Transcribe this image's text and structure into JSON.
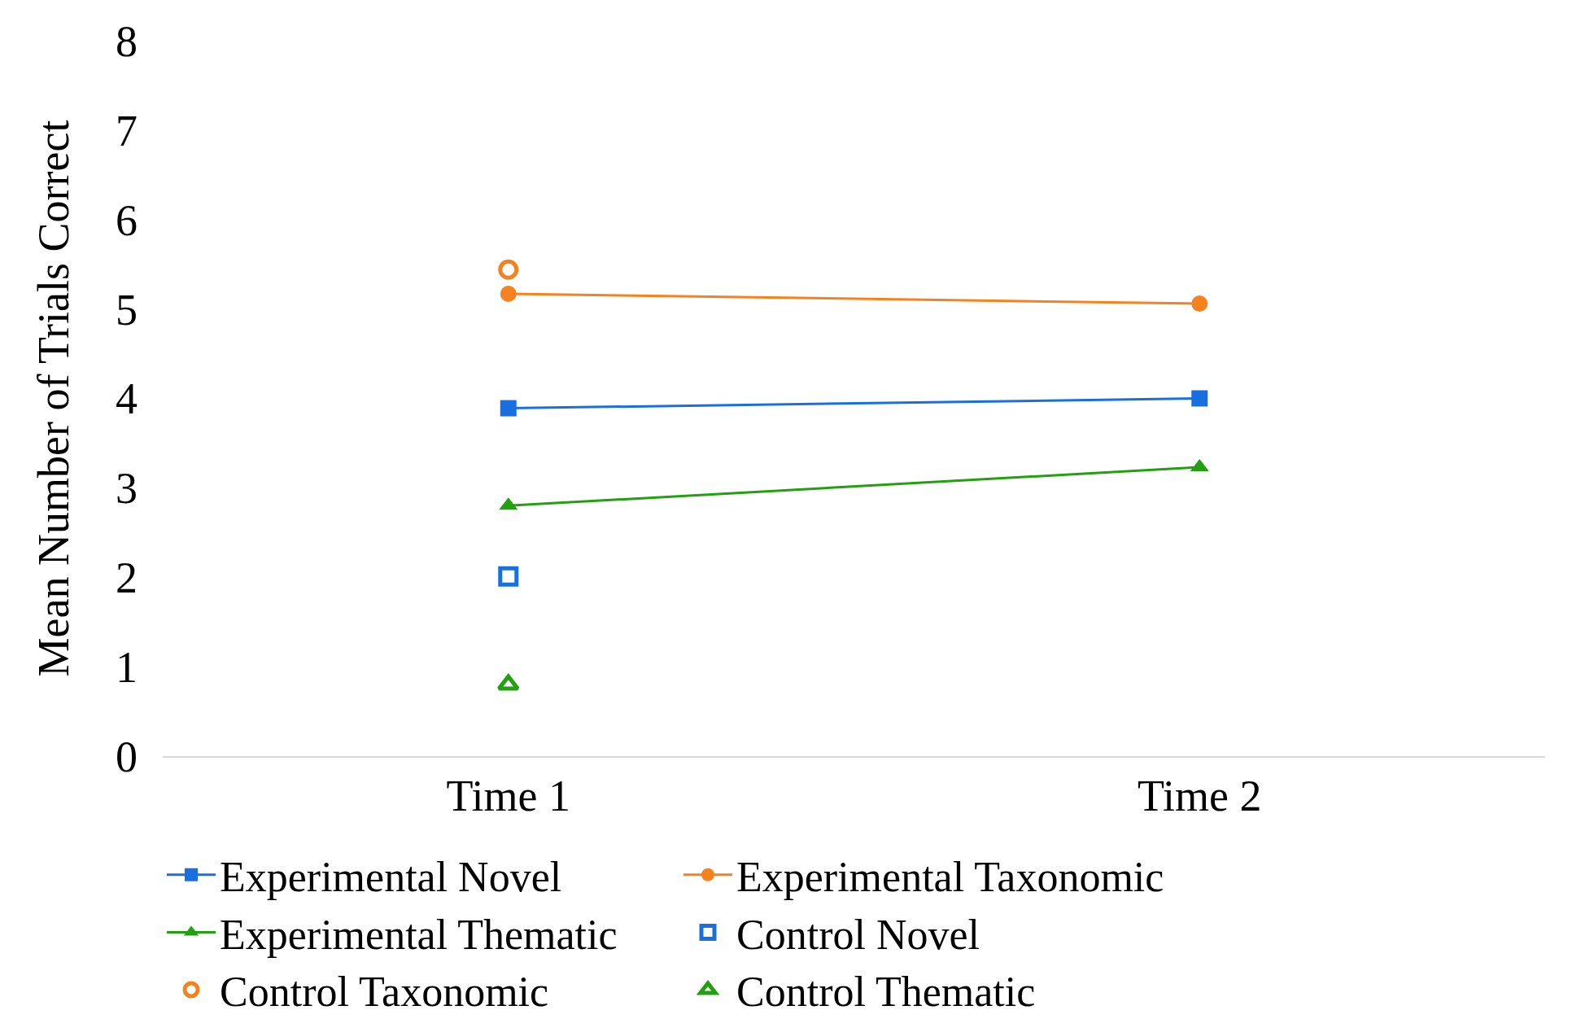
{
  "chart_data": {
    "type": "line",
    "ylabel": "Mean Number of Trials Correct",
    "categories": [
      "Time 1",
      "Time 2"
    ],
    "ylim": [
      0,
      8
    ],
    "yticks": [
      0,
      1,
      2,
      3,
      4,
      5,
      6,
      7,
      8
    ],
    "grid": false,
    "legend": "bottom",
    "series": [
      {
        "name": "Experimental Novel",
        "color": "#1a6fdf",
        "marker": "square",
        "values": [
          3.89,
          4.0
        ]
      },
      {
        "name": "Experimental Taxonomic",
        "color": "#f5821f",
        "marker": "circle",
        "values": [
          5.17,
          5.06
        ]
      },
      {
        "name": "Experimental Thematic",
        "color": "#22a00f",
        "marker": "triangle",
        "values": [
          2.8,
          3.23
        ]
      },
      {
        "name": "Control Novel",
        "type": "scatter",
        "color": "#1a6fdf",
        "marker": "square",
        "values": [
          2.01,
          null
        ]
      },
      {
        "name": "Control Taxonomic",
        "type": "scatter",
        "color": "#f5821f",
        "marker": "circle",
        "values": [
          5.44,
          null
        ]
      },
      {
        "name": "Control Thematic",
        "type": "scatter",
        "color": "#22a00f",
        "marker": "triangle",
        "values": [
          0.8,
          null
        ]
      }
    ]
  }
}
